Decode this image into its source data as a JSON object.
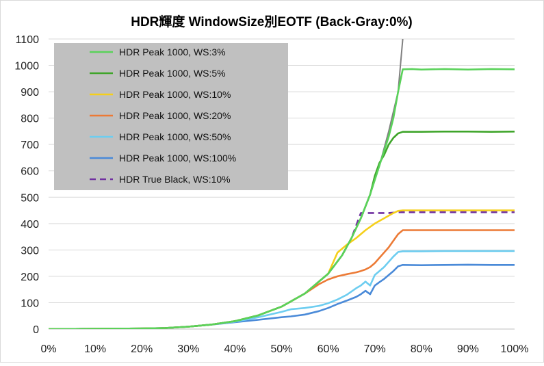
{
  "chart_data": {
    "type": "line",
    "title": "HDR輝度 WindowSize別EOTF (Back-Gray:0%)",
    "xlabel": "",
    "ylabel": "",
    "xlim": [
      0,
      100
    ],
    "ylim": [
      0,
      1100
    ],
    "x_ticks": [
      "0%",
      "10%",
      "20%",
      "30%",
      "40%",
      "50%",
      "60%",
      "70%",
      "80%",
      "90%",
      "100%"
    ],
    "y_ticks": [
      "0",
      "100",
      "200",
      "300",
      "400",
      "500",
      "600",
      "700",
      "800",
      "900",
      "1000",
      "1100"
    ],
    "grid": "horizontal",
    "legend_position": "top-left",
    "reference_curve": {
      "color": "#808080",
      "x": [
        0,
        20,
        25,
        30,
        35,
        40,
        45,
        50,
        55,
        60,
        63,
        65,
        67,
        69,
        71,
        73,
        75,
        76
      ],
      "y": [
        0,
        2,
        4,
        9,
        17,
        30,
        52,
        85,
        135,
        210,
        280,
        345,
        420,
        510,
        620,
        750,
        900,
        1100
      ]
    },
    "series": [
      {
        "name": "HDR Peak 1000, WS:3%",
        "color": "#5ad25a",
        "dash": false,
        "x": [
          0,
          20,
          25,
          30,
          35,
          40,
          45,
          50,
          55,
          60,
          63,
          65,
          67,
          69,
          71,
          73,
          74,
          75,
          76,
          78,
          80,
          85,
          90,
          95,
          100
        ],
        "y": [
          0,
          2,
          4,
          9,
          17,
          30,
          52,
          85,
          135,
          210,
          280,
          345,
          420,
          510,
          620,
          730,
          800,
          900,
          985,
          986,
          984,
          986,
          984,
          986,
          985
        ]
      },
      {
        "name": "HDR Peak 1000, WS:5%",
        "color": "#3fa52a",
        "dash": false,
        "x": [
          0,
          20,
          25,
          30,
          35,
          40,
          45,
          50,
          55,
          60,
          63,
          65,
          67,
          69,
          70,
          71,
          72,
          73,
          74,
          75,
          76,
          80,
          85,
          90,
          95,
          100
        ],
        "y": [
          0,
          2,
          4,
          9,
          17,
          30,
          52,
          85,
          135,
          210,
          280,
          345,
          420,
          510,
          580,
          630,
          660,
          700,
          725,
          742,
          748,
          748,
          749,
          749,
          748,
          749
        ]
      },
      {
        "name": "HDR Peak 1000, WS:10%",
        "color": "#f5cf1a",
        "dash": false,
        "x": [
          0,
          20,
          25,
          30,
          35,
          40,
          45,
          50,
          55,
          60,
          62,
          64,
          66,
          68,
          70,
          72,
          74,
          75,
          76,
          80,
          85,
          90,
          95,
          100
        ],
        "y": [
          0,
          2,
          4,
          9,
          17,
          30,
          52,
          85,
          135,
          210,
          290,
          320,
          345,
          375,
          400,
          420,
          440,
          448,
          450,
          450,
          450,
          450,
          450,
          450
        ]
      },
      {
        "name": "HDR Peak 1000, WS:20%",
        "color": "#ec7a35",
        "dash": false,
        "x": [
          0,
          20,
          25,
          30,
          35,
          40,
          45,
          50,
          55,
          58,
          60,
          62,
          64,
          66,
          67,
          68,
          69,
          70,
          71,
          72,
          73,
          74,
          75,
          76,
          80,
          85,
          90,
          95,
          100
        ],
        "y": [
          0,
          2,
          4,
          9,
          17,
          30,
          52,
          85,
          135,
          170,
          188,
          200,
          208,
          215,
          220,
          226,
          235,
          250,
          270,
          290,
          310,
          335,
          360,
          375,
          375,
          375,
          375,
          375,
          375
        ]
      },
      {
        "name": "HDR Peak 1000, WS:50%",
        "color": "#6dcdf0",
        "dash": false,
        "x": [
          0,
          20,
          25,
          30,
          35,
          40,
          45,
          50,
          52,
          55,
          58,
          60,
          62,
          64,
          66,
          67,
          68,
          69,
          70,
          71,
          72,
          73,
          74,
          75,
          76,
          80,
          85,
          90,
          95,
          100
        ],
        "y": [
          0,
          2,
          4,
          9,
          17,
          28,
          45,
          65,
          75,
          80,
          88,
          98,
          112,
          130,
          155,
          165,
          180,
          165,
          205,
          220,
          235,
          255,
          275,
          292,
          295,
          295,
          296,
          296,
          296,
          296
        ]
      },
      {
        "name": "HDR Peak 1000, WS:100%",
        "color": "#4a8ad8",
        "dash": false,
        "x": [
          0,
          20,
          25,
          30,
          35,
          40,
          45,
          50,
          52,
          55,
          58,
          60,
          62,
          64,
          66,
          67,
          68,
          69,
          70,
          71,
          72,
          73,
          74,
          75,
          76,
          80,
          85,
          90,
          95,
          100
        ],
        "y": [
          0,
          2,
          4,
          9,
          17,
          26,
          35,
          45,
          48,
          55,
          68,
          80,
          95,
          108,
          122,
          132,
          145,
          132,
          165,
          178,
          190,
          205,
          220,
          238,
          243,
          242,
          243,
          244,
          243,
          243
        ]
      },
      {
        "name": "HDR True Black, WS:10%",
        "color": "#7030a0",
        "dash": true,
        "x": [
          0,
          20,
          25,
          30,
          35,
          40,
          45,
          50,
          55,
          60,
          63,
          65,
          67,
          70,
          73,
          75,
          80,
          85,
          90,
          95,
          100
        ],
        "y": [
          0,
          2,
          4,
          9,
          17,
          30,
          52,
          85,
          135,
          210,
          280,
          345,
          440,
          440,
          440,
          443,
          443,
          443,
          443,
          443,
          443
        ]
      }
    ]
  }
}
